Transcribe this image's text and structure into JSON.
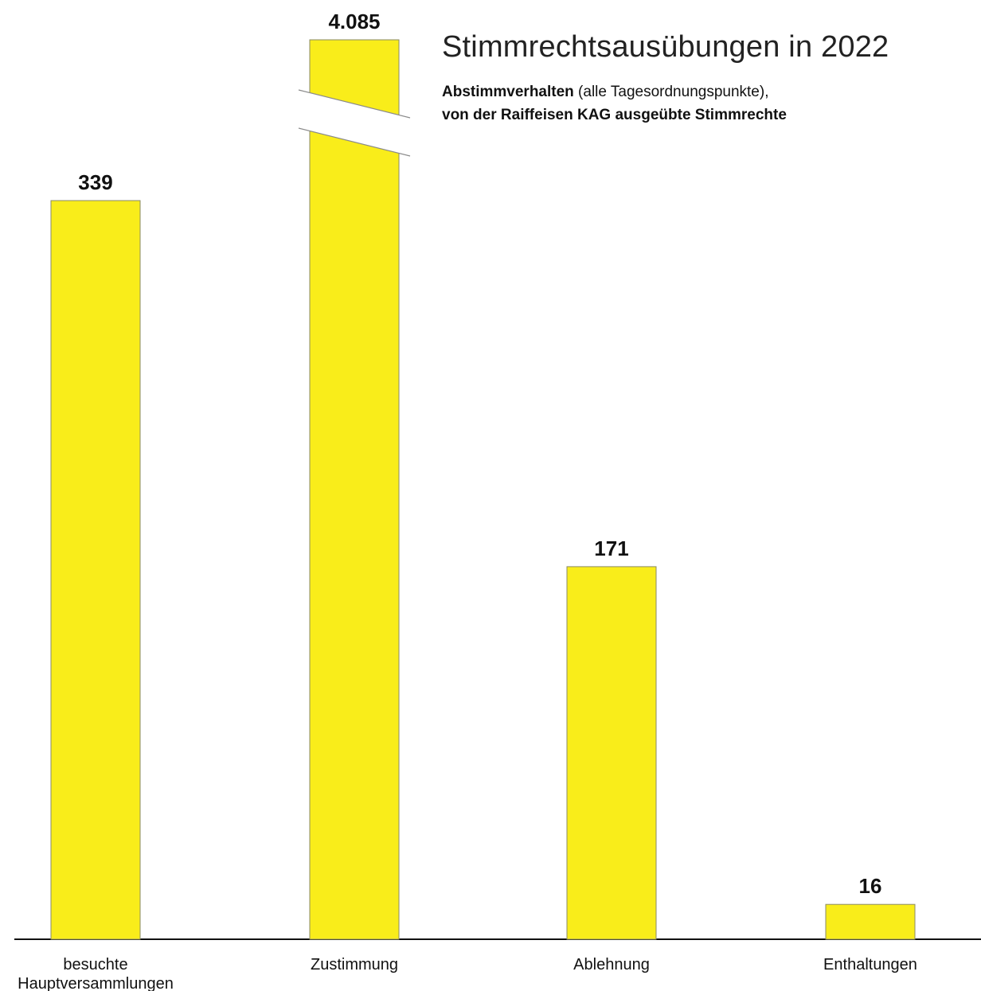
{
  "chart_data": {
    "type": "bar",
    "title": "Stimmrechtsausübungen in 2022",
    "subtitle": {
      "line1_bold": "Abstimmverhalten",
      "line1_rest": " (alle Tagesordnungspunkte),",
      "line2_bold": "von der Raiffeisen KAG ausgeübte Stimmrechte"
    },
    "categories": [
      "besuchte\nHauptversammlungen",
      "Zustimmung",
      "Ablehnung",
      "Enthaltungen"
    ],
    "values": [
      339,
      4085,
      171,
      16
    ],
    "value_labels": [
      "339",
      "4.085",
      "171",
      "16"
    ],
    "broken_bar_index": 1,
    "bar_color": "#f9ed1a",
    "bar_stroke": "#8a8a66",
    "xlabel": "",
    "ylabel": "",
    "ylim": [
      0,
      370
    ],
    "grid": false,
    "legend": "none"
  }
}
